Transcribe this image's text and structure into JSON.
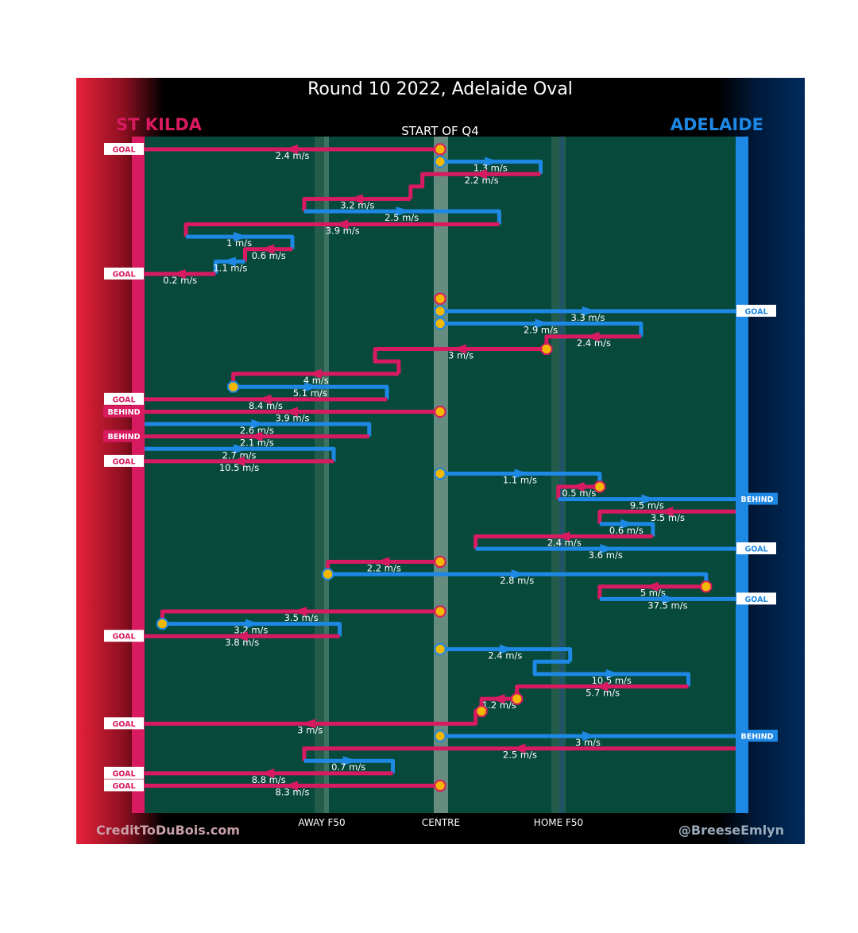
{
  "title": "Round 10 2022, Adelaide Oval",
  "subtitle": "START OF Q4",
  "teams": {
    "home": {
      "name": "ST KILDA",
      "color": "#d81b60"
    },
    "away": {
      "name": "ADELAIDE",
      "color": "#1e88e5"
    }
  },
  "axis_labels": {
    "away_f50": "AWAY F50",
    "centre": "CENTRE",
    "home_f50": "HOME F50"
  },
  "credits": {
    "left": "CreditToDuBois.com",
    "right": "@BreeseEmlyn"
  },
  "colors": {
    "field": "#07493b",
    "stkilda": "#d81b60",
    "adelaide": "#1e88e5",
    "marker": "#f5b800"
  },
  "chart_data": {
    "type": "line",
    "x_axis": {
      "min": 0,
      "max": 1,
      "ticks": [
        {
          "value": 0.27,
          "label": "AWAY F50"
        },
        {
          "value": 0.5,
          "label": "CENTRE"
        },
        {
          "value": 0.73,
          "label": "HOME F50"
        }
      ]
    },
    "chains": [
      {
        "team": "stkilda",
        "label": "2.4 m/s",
        "pts": [
          [
            0.5,
            0.0
          ],
          [
            0.0,
            0.0
          ]
        ],
        "marker": "start",
        "outcome": "GOAL"
      },
      {
        "team": "adelaide",
        "label": "1.3 m/s",
        "pts": [
          [
            0.5,
            0.019
          ],
          [
            0.67,
            0.019
          ],
          [
            0.67,
            0.038
          ]
        ],
        "marker": "start"
      },
      {
        "team": "stkilda",
        "label": "2.2 m/s",
        "pts": [
          [
            0.67,
            0.038
          ],
          [
            0.47,
            0.038
          ],
          [
            0.47,
            0.057
          ],
          [
            0.45,
            0.057
          ],
          [
            0.45,
            0.076
          ]
        ]
      },
      {
        "team": "stkilda",
        "label": "3.2 m/s",
        "pts": [
          [
            0.45,
            0.076
          ],
          [
            0.27,
            0.076
          ],
          [
            0.27,
            0.095
          ]
        ]
      },
      {
        "team": "adelaide",
        "label": "2.5 m/s",
        "pts": [
          [
            0.27,
            0.095
          ],
          [
            0.6,
            0.095
          ],
          [
            0.6,
            0.115
          ]
        ]
      },
      {
        "team": "stkilda",
        "label": "3.9 m/s",
        "pts": [
          [
            0.6,
            0.115
          ],
          [
            0.07,
            0.115
          ],
          [
            0.07,
            0.134
          ]
        ]
      },
      {
        "team": "adelaide",
        "label": "1 m/s",
        "pts": [
          [
            0.07,
            0.134
          ],
          [
            0.25,
            0.134
          ],
          [
            0.25,
            0.153
          ]
        ]
      },
      {
        "team": "stkilda",
        "label": "0.6 m/s",
        "pts": [
          [
            0.25,
            0.153
          ],
          [
            0.17,
            0.153
          ],
          [
            0.17,
            0.172
          ]
        ]
      },
      {
        "team": "adelaide",
        "label": "1.1 m/s",
        "pts": [
          [
            0.17,
            0.172
          ],
          [
            0.12,
            0.172
          ],
          [
            0.12,
            0.191
          ]
        ]
      },
      {
        "team": "stkilda",
        "label": "0.2 m/s",
        "pts": [
          [
            0.12,
            0.191
          ],
          [
            0.0,
            0.191
          ]
        ],
        "outcome": "GOAL"
      },
      {
        "team": "stkilda",
        "label": "",
        "pts": [
          [
            0.5,
            0.229
          ],
          [
            0.5,
            0.236
          ]
        ],
        "marker": "start"
      },
      {
        "team": "adelaide",
        "label": "3.3 m/s",
        "pts": [
          [
            0.5,
            0.248
          ],
          [
            1.0,
            0.248
          ]
        ],
        "marker": "start",
        "outcome": "GOAL"
      },
      {
        "team": "adelaide",
        "label": "2.9 m/s",
        "pts": [
          [
            0.5,
            0.267
          ],
          [
            0.84,
            0.267
          ],
          [
            0.84,
            0.287
          ]
        ],
        "marker": "start"
      },
      {
        "team": "stkilda",
        "label": "2.4 m/s",
        "pts": [
          [
            0.84,
            0.287
          ],
          [
            0.68,
            0.287
          ],
          [
            0.68,
            0.306
          ]
        ]
      },
      {
        "team": "stkilda",
        "label": "3 m/s",
        "pts": [
          [
            0.68,
            0.306
          ],
          [
            0.39,
            0.306
          ],
          [
            0.39,
            0.325
          ],
          [
            0.43,
            0.325
          ],
          [
            0.43,
            0.344
          ]
        ],
        "marker": "start"
      },
      {
        "team": "stkilda",
        "label": "4 m/s",
        "pts": [
          [
            0.43,
            0.344
          ],
          [
            0.15,
            0.344
          ],
          [
            0.15,
            0.364
          ]
        ]
      },
      {
        "team": "adelaide",
        "label": "5.1 m/s",
        "pts": [
          [
            0.15,
            0.364
          ],
          [
            0.41,
            0.364
          ],
          [
            0.41,
            0.383
          ]
        ],
        "marker": "start"
      },
      {
        "team": "stkilda",
        "label": "8.4 m/s",
        "pts": [
          [
            0.41,
            0.383
          ],
          [
            0.0,
            0.383
          ]
        ],
        "outcome": "GOAL"
      },
      {
        "team": "stkilda",
        "label": "3.9 m/s",
        "pts": [
          [
            0.5,
            0.402
          ],
          [
            0.0,
            0.402
          ]
        ],
        "marker": "start",
        "outcome": "BEHIND"
      },
      {
        "team": "adelaide",
        "label": "2.6 m/s",
        "pts": [
          [
            0.0,
            0.421
          ],
          [
            0.38,
            0.421
          ],
          [
            0.38,
            0.44
          ]
        ]
      },
      {
        "team": "stkilda",
        "label": "2.1 m/s",
        "pts": [
          [
            0.38,
            0.44
          ],
          [
            0.0,
            0.44
          ]
        ],
        "outcome": "BEHIND"
      },
      {
        "team": "adelaide",
        "label": "2.7 m/s",
        "pts": [
          [
            0.0,
            0.459
          ],
          [
            0.32,
            0.459
          ],
          [
            0.32,
            0.478
          ]
        ]
      },
      {
        "team": "stkilda",
        "label": "10.5 m/s",
        "pts": [
          [
            0.32,
            0.478
          ],
          [
            0.0,
            0.478
          ]
        ],
        "outcome": "GOAL"
      },
      {
        "team": "adelaide",
        "label": "1.1 m/s",
        "pts": [
          [
            0.5,
            0.497
          ],
          [
            0.77,
            0.497
          ],
          [
            0.77,
            0.517
          ]
        ],
        "marker": "start"
      },
      {
        "team": "stkilda",
        "label": "0.5 m/s",
        "pts": [
          [
            0.77,
            0.517
          ],
          [
            0.7,
            0.517
          ],
          [
            0.7,
            0.536
          ]
        ],
        "marker": "start"
      },
      {
        "team": "adelaide",
        "label": "9.5 m/s",
        "pts": [
          [
            0.7,
            0.536
          ],
          [
            1.0,
            0.536
          ]
        ],
        "outcome": "BEHIND"
      },
      {
        "team": "stkilda",
        "label": "3.5 m/s",
        "pts": [
          [
            1.0,
            0.555
          ],
          [
            0.77,
            0.555
          ],
          [
            0.77,
            0.574
          ]
        ]
      },
      {
        "team": "adelaide",
        "label": "0.6 m/s",
        "pts": [
          [
            0.77,
            0.574
          ],
          [
            0.86,
            0.574
          ],
          [
            0.86,
            0.593
          ]
        ]
      },
      {
        "team": "stkilda",
        "label": "2.4 m/s",
        "pts": [
          [
            0.86,
            0.593
          ],
          [
            0.56,
            0.593
          ],
          [
            0.56,
            0.612
          ]
        ]
      },
      {
        "team": "adelaide",
        "label": "3.6 m/s",
        "pts": [
          [
            0.56,
            0.612
          ],
          [
            1.0,
            0.612
          ]
        ],
        "outcome": "GOAL"
      },
      {
        "team": "stkilda",
        "label": "2.2 m/s",
        "pts": [
          [
            0.5,
            0.632
          ],
          [
            0.31,
            0.632
          ],
          [
            0.31,
            0.651
          ]
        ],
        "marker": "start"
      },
      {
        "team": "adelaide",
        "label": "2.8 m/s",
        "pts": [
          [
            0.31,
            0.651
          ],
          [
            0.95,
            0.651
          ],
          [
            0.95,
            0.67
          ]
        ],
        "marker": "start"
      },
      {
        "team": "stkilda",
        "label": "5 m/s",
        "pts": [
          [
            0.95,
            0.67
          ],
          [
            0.77,
            0.67
          ],
          [
            0.77,
            0.689
          ]
        ],
        "marker": "start"
      },
      {
        "team": "adelaide",
        "label": "37.5 m/s",
        "pts": [
          [
            0.77,
            0.689
          ],
          [
            1.0,
            0.689
          ]
        ],
        "outcome": "GOAL"
      },
      {
        "team": "stkilda",
        "label": "3.5 m/s",
        "pts": [
          [
            0.5,
            0.708
          ],
          [
            0.03,
            0.708
          ],
          [
            0.03,
            0.727
          ]
        ],
        "marker": "start"
      },
      {
        "team": "adelaide",
        "label": "3.2 m/s",
        "pts": [
          [
            0.03,
            0.727
          ],
          [
            0.33,
            0.727
          ],
          [
            0.33,
            0.746
          ]
        ],
        "marker": "start"
      },
      {
        "team": "stkilda",
        "label": "3.8 m/s",
        "pts": [
          [
            0.33,
            0.746
          ],
          [
            0.0,
            0.746
          ]
        ],
        "outcome": "GOAL"
      },
      {
        "team": "adelaide",
        "label": "2.4 m/s",
        "pts": [
          [
            0.5,
            0.766
          ],
          [
            0.72,
            0.766
          ],
          [
            0.72,
            0.785
          ]
        ],
        "marker": "start"
      },
      {
        "team": "adelaide",
        "label": "10.5 m/s",
        "pts": [
          [
            0.72,
            0.785
          ],
          [
            0.66,
            0.785
          ],
          [
            0.66,
            0.804
          ],
          [
            0.92,
            0.804
          ],
          [
            0.92,
            0.823
          ]
        ]
      },
      {
        "team": "stkilda",
        "label": "5.7 m/s",
        "pts": [
          [
            0.92,
            0.823
          ],
          [
            0.63,
            0.823
          ],
          [
            0.63,
            0.842
          ]
        ]
      },
      {
        "team": "stkilda",
        "label": "1.2 m/s",
        "pts": [
          [
            0.63,
            0.842
          ],
          [
            0.57,
            0.842
          ],
          [
            0.57,
            0.861
          ]
        ],
        "marker": "start"
      },
      {
        "team": "stkilda",
        "label": "3 m/s",
        "pts": [
          [
            0.57,
            0.861
          ],
          [
            0.56,
            0.861
          ],
          [
            0.56,
            0.88
          ],
          [
            0.0,
            0.88
          ]
        ],
        "marker": "start",
        "outcome": "GOAL"
      },
      {
        "team": "adelaide",
        "label": "3 m/s",
        "pts": [
          [
            0.5,
            0.899
          ],
          [
            1.0,
            0.899
          ]
        ],
        "marker": "start",
        "outcome": "BEHIND"
      },
      {
        "team": "stkilda",
        "label": "2.5 m/s",
        "pts": [
          [
            1.0,
            0.918
          ],
          [
            0.27,
            0.918
          ],
          [
            0.27,
            0.937
          ]
        ]
      },
      {
        "team": "adelaide",
        "label": "0.7 m/s",
        "pts": [
          [
            0.27,
            0.937
          ],
          [
            0.42,
            0.937
          ],
          [
            0.42,
            0.956
          ]
        ]
      },
      {
        "team": "stkilda",
        "label": "8.8 m/s",
        "pts": [
          [
            0.42,
            0.956
          ],
          [
            0.0,
            0.956
          ]
        ],
        "outcome": "GOAL"
      },
      {
        "team": "stkilda",
        "label": "8.3 m/s",
        "pts": [
          [
            0.5,
            0.975
          ],
          [
            0.0,
            0.975
          ]
        ],
        "marker": "start",
        "outcome": "GOAL"
      }
    ]
  }
}
